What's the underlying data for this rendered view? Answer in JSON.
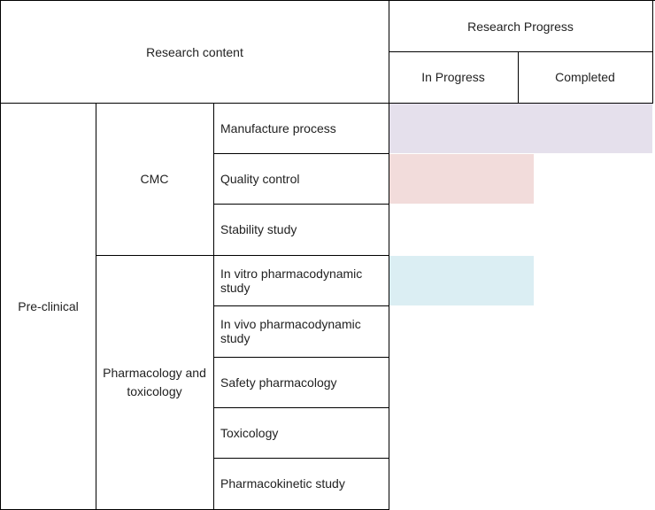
{
  "header": {
    "research_content": "Research content",
    "research_progress": "Research Progress",
    "in_progress": "In Progress",
    "completed": "Completed"
  },
  "stage": "Pre-clinical",
  "groups": [
    {
      "label": "CMC"
    },
    {
      "label": "Pharmacology and toxicology"
    }
  ],
  "rows": [
    {
      "item": "Manufacture process",
      "progress": 1.0,
      "bar_color": "#e5e0ec"
    },
    {
      "item": "Quality control",
      "progress": 0.55,
      "bar_color": "#f2dcdb"
    },
    {
      "item": "Stability study",
      "progress": 0,
      "bar_color": ""
    },
    {
      "item": "In vitro pharmacodynamic study",
      "progress": 0.55,
      "bar_color": "#dbeef3"
    },
    {
      "item": "In vivo pharmacodynamic study",
      "progress": 0,
      "bar_color": ""
    },
    {
      "item": "Safety pharmacology",
      "progress": 0,
      "bar_color": ""
    },
    {
      "item": "Toxicology",
      "progress": 0,
      "bar_color": ""
    },
    {
      "item": "Pharmacokinetic study",
      "progress": 0,
      "bar_color": ""
    }
  ]
}
